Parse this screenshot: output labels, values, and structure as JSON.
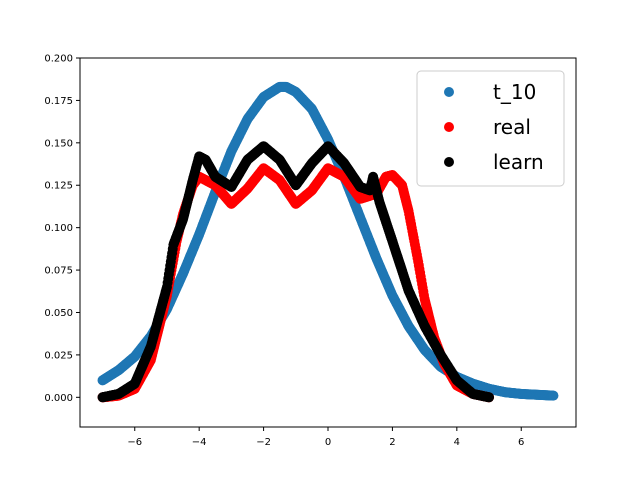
{
  "chart_data": {
    "type": "scatter",
    "title": "",
    "xlabel": "",
    "ylabel": "",
    "xlim": [
      -7.7,
      7.7
    ],
    "ylim": [
      -0.0175,
      0.2
    ],
    "x_ticks": [
      -6,
      -4,
      -2,
      0,
      2,
      4,
      6
    ],
    "y_ticks": [
      0.0,
      0.025,
      0.05,
      0.075,
      0.1,
      0.125,
      0.15,
      0.175,
      0.2
    ],
    "x_tick_labels": [
      "−6",
      "−4",
      "−2",
      "0",
      "2",
      "4",
      "6"
    ],
    "y_tick_labels": [
      "0.000",
      "0.025",
      "0.050",
      "0.075",
      "0.100",
      "0.125",
      "0.150",
      "0.175",
      "0.200"
    ],
    "grid": false,
    "legend_position": "top-right",
    "series": [
      {
        "name": "t_10",
        "color": "#1f77b4",
        "x": [
          -7.0,
          -6.5,
          -6.0,
          -5.5,
          -5.0,
          -4.5,
          -4.0,
          -3.5,
          -3.0,
          -2.5,
          -2.0,
          -1.5,
          -1.3,
          -1.0,
          -0.5,
          0.0,
          0.5,
          1.0,
          1.5,
          2.0,
          2.5,
          3.0,
          3.5,
          4.0,
          4.5,
          5.0,
          5.5,
          6.0,
          6.5,
          7.0
        ],
        "y": [
          0.01,
          0.016,
          0.024,
          0.036,
          0.052,
          0.073,
          0.096,
          0.121,
          0.145,
          0.164,
          0.177,
          0.183,
          0.183,
          0.18,
          0.17,
          0.152,
          0.13,
          0.106,
          0.082,
          0.06,
          0.042,
          0.028,
          0.018,
          0.012,
          0.008,
          0.005,
          0.003,
          0.002,
          0.0015,
          0.001
        ]
      },
      {
        "name": "real",
        "color": "#ff0000",
        "x": [
          -7.0,
          -6.5,
          -6.0,
          -5.5,
          -5.0,
          -4.7,
          -4.5,
          -4.2,
          -4.0,
          -3.5,
          -3.0,
          -2.5,
          -2.0,
          -1.5,
          -1.0,
          -0.5,
          0.0,
          0.5,
          1.0,
          1.5,
          1.8,
          2.0,
          2.3,
          2.5,
          2.8,
          3.0,
          3.3,
          3.6,
          4.0,
          4.5,
          5.0
        ],
        "y": [
          0.0,
          0.001,
          0.005,
          0.022,
          0.06,
          0.092,
          0.108,
          0.125,
          0.13,
          0.125,
          0.114,
          0.123,
          0.135,
          0.128,
          0.114,
          0.122,
          0.135,
          0.13,
          0.117,
          0.12,
          0.13,
          0.131,
          0.125,
          0.11,
          0.08,
          0.058,
          0.035,
          0.02,
          0.007,
          0.002,
          0.0
        ]
      },
      {
        "name": "learn",
        "color": "#000000",
        "x": [
          -7.0,
          -6.5,
          -6.0,
          -5.5,
          -5.0,
          -4.8,
          -4.5,
          -4.2,
          -4.0,
          -3.8,
          -3.5,
          -3.0,
          -2.5,
          -2.0,
          -1.5,
          -1.0,
          -0.5,
          0.0,
          0.5,
          1.0,
          1.3,
          1.4,
          1.6,
          2.0,
          2.5,
          3.0,
          3.5,
          4.0,
          4.5,
          5.0
        ],
        "y": [
          0.0,
          0.002,
          0.008,
          0.03,
          0.065,
          0.09,
          0.105,
          0.128,
          0.142,
          0.14,
          0.13,
          0.124,
          0.14,
          0.148,
          0.14,
          0.125,
          0.138,
          0.148,
          0.138,
          0.124,
          0.122,
          0.13,
          0.115,
          0.092,
          0.063,
          0.042,
          0.025,
          0.01,
          0.002,
          0.0
        ]
      }
    ]
  }
}
